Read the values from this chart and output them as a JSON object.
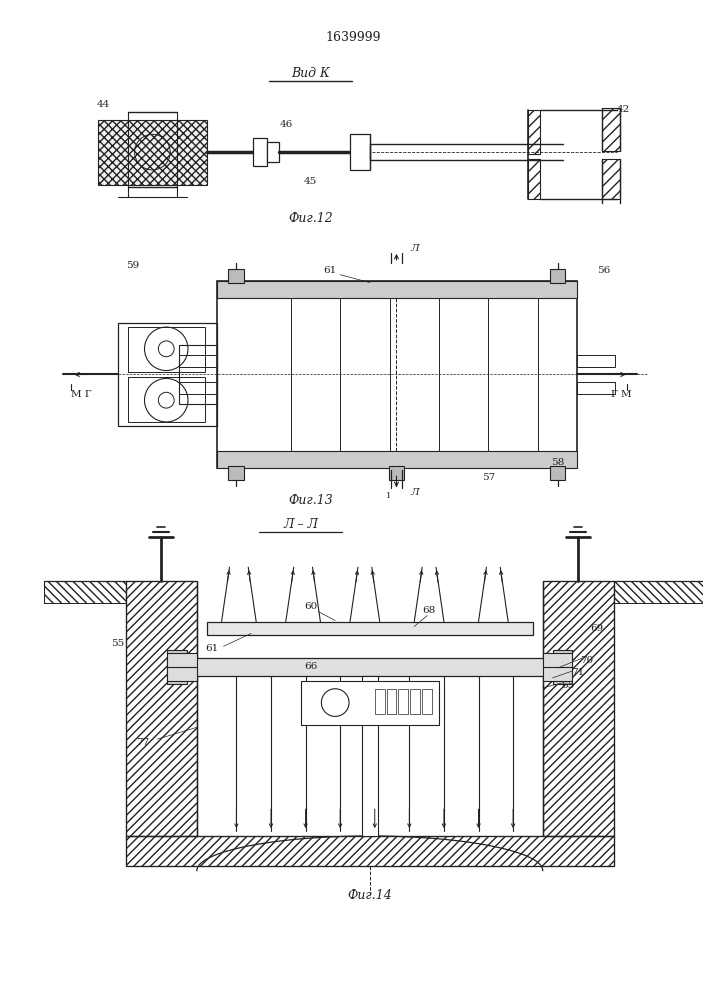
{
  "title": "1639999",
  "bg_color": "#ffffff",
  "line_color": "#222222",
  "fig12_label": "Фиг.12",
  "fig13_label": "Фиг.13",
  "fig14_label": "Фиг.14",
  "vidk_label": "Вид К",
  "ll_label": "Л – Л"
}
